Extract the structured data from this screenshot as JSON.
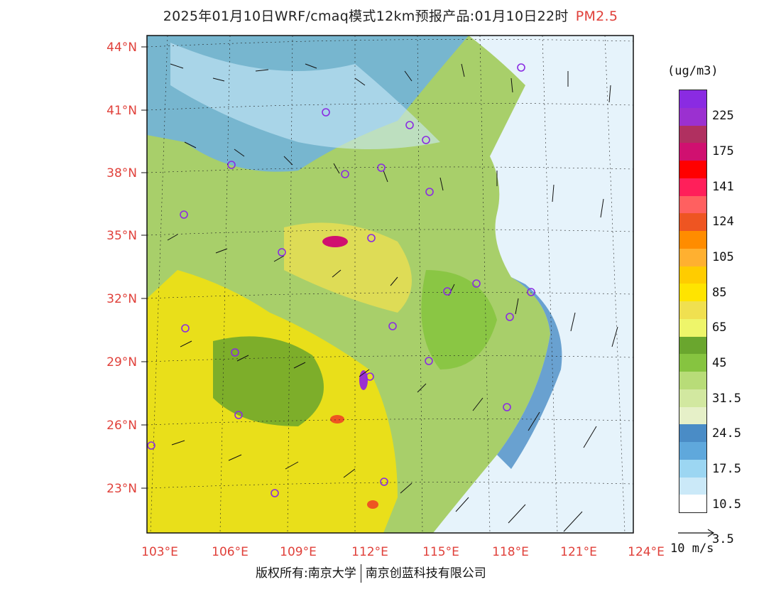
{
  "header": {
    "title": "2025年01月10日WRF/cmaq模式12km预报产品:01月10日22时",
    "pollutant": "PM2.5"
  },
  "map": {
    "lat_labels": [
      "44°N",
      "41°N",
      "38°N",
      "35°N",
      "32°N",
      "29°N",
      "26°N",
      "23°N"
    ],
    "lon_labels": [
      "103°E",
      "106°E",
      "109°E",
      "112°E",
      "115°E",
      "118°E",
      "121°E",
      "124°E"
    ],
    "label_color": "#e0403a",
    "land_color": "#a8cf6a",
    "sea_color": "#e6f3fb"
  },
  "colorbar": {
    "unit": "(ug/m3)",
    "colors": [
      "#8a2be2",
      "#9b30d0",
      "#b03060",
      "#d01070",
      "#ff0000",
      "#ff1f5a",
      "#ff6060",
      "#ee5522",
      "#ff8c00",
      "#ffb030",
      "#ffcc00",
      "#ffe400",
      "#f0e050",
      "#eef56a",
      "#6aa62e",
      "#86c440",
      "#b8dc78",
      "#d2e8a0",
      "#e6f0c8",
      "#4a8cc6",
      "#5fa8dc",
      "#9cd6f2",
      "#cbe9f8",
      "#ffffff"
    ],
    "labels": [
      "225",
      "175",
      "141",
      "124",
      "105",
      "85",
      "65",
      "45",
      "31.5",
      "24.5",
      "17.5",
      "10.5",
      "3.5"
    ]
  },
  "wind_reference": {
    "label": "10 m/s"
  },
  "footer": {
    "left": "版权所有:南京大学",
    "right": "南京创蓝科技有限公司"
  }
}
